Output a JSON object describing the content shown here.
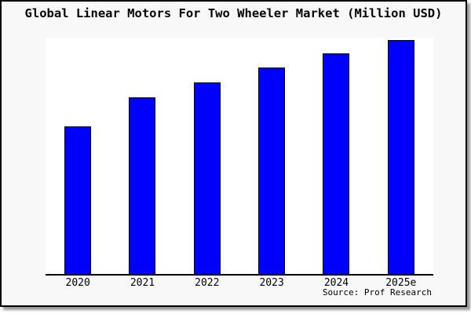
{
  "title": "Global Linear Motors For Two Wheeler Market (Million USD)",
  "source_label": "Source: Prof Research",
  "colors": {
    "bar_fill": "#0000ff",
    "bar_border": "#000000",
    "figure_background": "#f8f8f8",
    "plot_background": "#ffffff",
    "axis": "#000000",
    "text": "#000000"
  },
  "chart_data": {
    "type": "bar",
    "title": "Global Linear Motors For Two Wheeler Market (Million USD)",
    "categories": [
      "2020",
      "2021",
      "2022",
      "2023",
      "2024",
      "2025e"
    ],
    "values": [
      63,
      75.5,
      81.8,
      88.2,
      94.2,
      100
    ],
    "units": "relative height (no y-axis tick labels shown; 2025e normalized to 100)",
    "xlabel": "",
    "ylabel": "",
    "ylim": [
      0,
      101
    ],
    "grid": false,
    "legend": false,
    "bar_color": "#0000ff",
    "annotations": [
      "Source: Prof Research"
    ]
  }
}
